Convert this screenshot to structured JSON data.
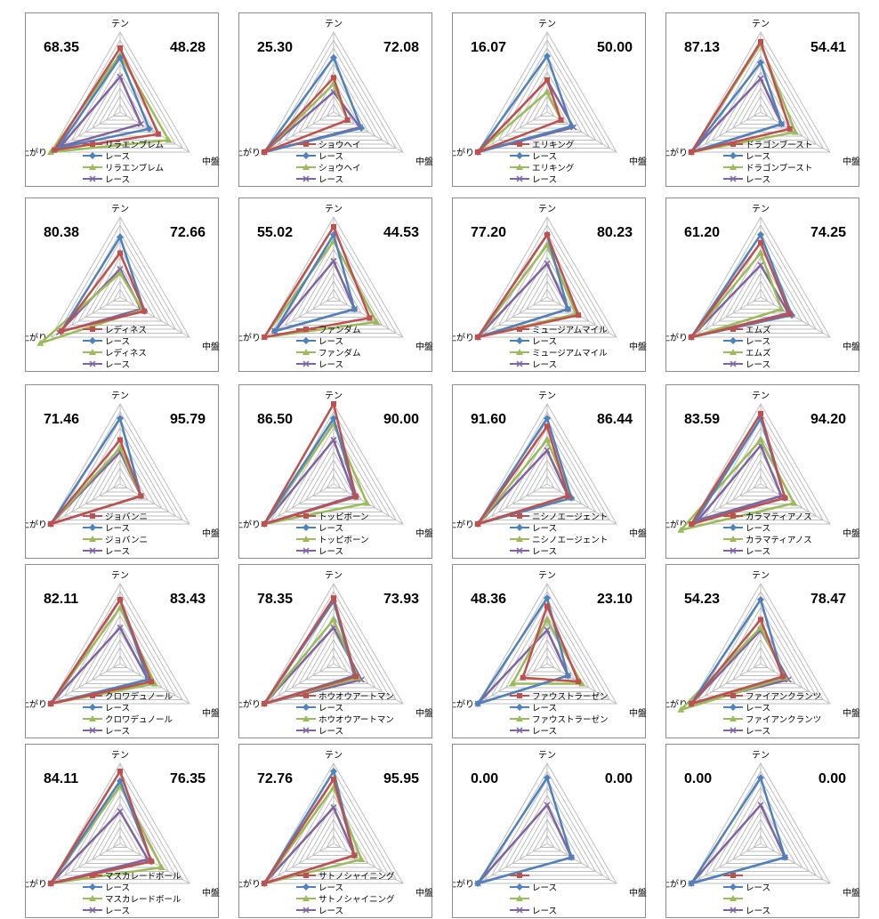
{
  "colors": {
    "red": "#c0504d",
    "blue": "#4f81bd",
    "green": "#9bbb59",
    "purple": "#8064a2",
    "grid": "#bfbfbf",
    "frame": "#8c8c8c"
  },
  "chart_data": [
    {
      "type": "radar",
      "axes": [
        "テン",
        "中盤",
        "上がり"
      ],
      "left_score": "68.35",
      "right_score": "48.28",
      "legend": [
        "リラエンブレム",
        "レース",
        "リラエンブレム",
        "レース"
      ],
      "series": [
        {
          "values": [
            80,
            55,
            95
          ]
        },
        {
          "values": [
            68,
            42,
            90
          ]
        },
        {
          "values": [
            72,
            70,
            100
          ]
        },
        {
          "values": [
            44,
            30,
            86
          ]
        }
      ]
    },
    {
      "type": "radar",
      "axes": [
        "テン",
        "中盤",
        "上がり"
      ],
      "left_score": "25.30",
      "right_score": "72.08",
      "legend": [
        "ショウヘイ",
        "レース",
        "ショウヘイ",
        "レース"
      ],
      "series": [
        {
          "values": [
            43,
            20,
            100
          ]
        },
        {
          "values": [
            68,
            40,
            100
          ]
        },
        {
          "values": [
            35,
            20,
            100
          ]
        },
        {
          "values": [
            25,
            38,
            100
          ]
        }
      ]
    },
    {
      "type": "radar",
      "axes": [
        "テン",
        "中盤",
        "上がり"
      ],
      "left_score": "16.07",
      "right_score": "50.00",
      "legend": [
        "エリキング",
        "レース",
        "エリキング",
        "レース"
      ],
      "series": [
        {
          "values": [
            40,
            20,
            100
          ]
        },
        {
          "values": [
            70,
            35,
            100
          ]
        },
        {
          "values": [
            25,
            20,
            100
          ]
        },
        {
          "values": [
            40,
            38,
            100
          ]
        }
      ]
    },
    {
      "type": "radar",
      "axes": [
        "テン",
        "中盤",
        "上がり"
      ],
      "left_score": "87.13",
      "right_score": "54.41",
      "legend": [
        "ドラゴンブースト",
        "レース",
        "ドラゴンブースト",
        "レース"
      ],
      "series": [
        {
          "values": [
            88,
            42,
            100
          ]
        },
        {
          "values": [
            62,
            30,
            100
          ]
        },
        {
          "values": [
            85,
            50,
            100
          ]
        },
        {
          "values": [
            42,
            30,
            100
          ]
        }
      ]
    },
    {
      "type": "radar",
      "axes": [
        "テン",
        "中盤",
        "上がり"
      ],
      "left_score": "80.38",
      "right_score": "72.66",
      "legend": [
        "レディネス",
        "レース",
        "レディネス",
        "レース"
      ],
      "series": [
        {
          "values": [
            55,
            35,
            85
          ]
        },
        {
          "values": [
            75,
            35,
            85
          ]
        },
        {
          "values": [
            30,
            32,
            115
          ]
        },
        {
          "values": [
            35,
            30,
            88
          ]
        }
      ]
    },
    {
      "type": "radar",
      "axes": [
        "テン",
        "中盤",
        "上がり"
      ],
      "left_score": "55.02",
      "right_score": "44.53",
      "legend": [
        "ファンダム",
        "レース",
        "ファンダム",
        "レース"
      ],
      "series": [
        {
          "values": [
            88,
            52,
            100
          ]
        },
        {
          "values": [
            78,
            30,
            85
          ]
        },
        {
          "values": [
            70,
            62,
            100
          ]
        },
        {
          "values": [
            45,
            30,
            85
          ]
        }
      ]
    },
    {
      "type": "radar",
      "axes": [
        "テン",
        "中盤",
        "上がり"
      ],
      "left_score": "77.20",
      "right_score": "80.23",
      "legend": [
        "ミュージアムマイル",
        "レース",
        "ミュージアムマイル",
        "レース"
      ],
      "series": [
        {
          "values": [
            78,
            45,
            100
          ]
        },
        {
          "values": [
            78,
            30,
            100
          ]
        },
        {
          "values": [
            65,
            42,
            100
          ]
        },
        {
          "values": [
            42,
            30,
            100
          ]
        }
      ]
    },
    {
      "type": "radar",
      "axes": [
        "テン",
        "中盤",
        "上がり"
      ],
      "left_score": "61.20",
      "right_score": "74.25",
      "legend": [
        "エムズ",
        "レース",
        "エムズ",
        "レース"
      ],
      "series": [
        {
          "values": [
            68,
            42,
            100
          ]
        },
        {
          "values": [
            78,
            45,
            100
          ]
        },
        {
          "values": [
            55,
            30,
            100
          ]
        },
        {
          "values": [
            40,
            40,
            100
          ]
        }
      ]
    },
    {
      "type": "radar",
      "axes": [
        "テン",
        "中盤",
        "上がり"
      ],
      "left_score": "71.46",
      "right_score": "95.79",
      "legend": [
        "ジョバンニ",
        "レース",
        "ジョバンニ",
        "レース"
      ],
      "series": [
        {
          "values": [
            55,
            30,
            100
          ]
        },
        {
          "values": [
            82,
            30,
            100
          ]
        },
        {
          "values": [
            45,
            30,
            100
          ]
        },
        {
          "values": [
            40,
            30,
            100
          ]
        }
      ]
    },
    {
      "type": "radar",
      "axes": [
        "テン",
        "中盤",
        "上がり"
      ],
      "left_score": "86.50",
      "right_score": "90.00",
      "legend": [
        "トッピボーン",
        "レース",
        "トッピボーン",
        "レース"
      ],
      "series": [
        {
          "values": [
            100,
            32,
            100
          ]
        },
        {
          "values": [
            82,
            32,
            100
          ]
        },
        {
          "values": [
            75,
            48,
            100
          ]
        },
        {
          "values": [
            55,
            30,
            100
          ]
        }
      ]
    },
    {
      "type": "radar",
      "axes": [
        "テン",
        "中盤",
        "上がり"
      ],
      "left_score": "91.60",
      "right_score": "86.44",
      "legend": [
        "ニシノエージェント",
        "レース",
        "ニシノエージェント",
        "レース"
      ],
      "series": [
        {
          "values": [
            72,
            30,
            100
          ]
        },
        {
          "values": [
            82,
            35,
            100
          ]
        },
        {
          "values": [
            55,
            35,
            100
          ]
        },
        {
          "values": [
            42,
            30,
            100
          ]
        }
      ]
    },
    {
      "type": "radar",
      "axes": [
        "テン",
        "中盤",
        "上がり"
      ],
      "left_score": "83.59",
      "right_score": "94.20",
      "legend": [
        "カラマティアノス",
        "レース",
        "カラマティアノス",
        "レース"
      ],
      "series": [
        {
          "values": [
            88,
            35,
            100
          ]
        },
        {
          "values": [
            82,
            35,
            95
          ]
        },
        {
          "values": [
            55,
            48,
            115
          ]
        },
        {
          "values": [
            48,
            30,
            90
          ]
        }
      ]
    },
    {
      "type": "radar",
      "axes": [
        "テン",
        "中盤",
        "上がり"
      ],
      "left_score": "82.11",
      "right_score": "83.43",
      "legend": [
        "クロワデュノール",
        "レース",
        "クロワデュノール",
        "レース"
      ],
      "series": [
        {
          "values": [
            80,
            45,
            100
          ]
        },
        {
          "values": [
            80,
            40,
            100
          ]
        },
        {
          "values": [
            70,
            50,
            100
          ]
        },
        {
          "values": [
            45,
            40,
            100
          ]
        }
      ]
    },
    {
      "type": "radar",
      "axes": [
        "テン",
        "中盤",
        "上がり"
      ],
      "left_score": "78.35",
      "right_score": "73.93",
      "legend": [
        "ホウオウアートマン",
        "レース",
        "ホウオウアートマン",
        "レース"
      ],
      "series": [
        {
          "values": [
            82,
            32,
            100
          ]
        },
        {
          "values": [
            78,
            30,
            100
          ]
        },
        {
          "values": [
            55,
            35,
            100
          ]
        },
        {
          "values": [
            45,
            40,
            100
          ]
        }
      ]
    },
    {
      "type": "radar",
      "axes": [
        "テン",
        "中盤",
        "上がり"
      ],
      "left_score": "48.36",
      "right_score": "23.10",
      "legend": [
        "ファウストラーゼン",
        "レース",
        "ファウストラーゼン",
        "レース"
      ],
      "series": [
        {
          "values": [
            72,
            45,
            35
          ]
        },
        {
          "values": [
            82,
            30,
            100
          ]
        },
        {
          "values": [
            55,
            50,
            50
          ]
        },
        {
          "values": [
            42,
            30,
            100
          ]
        }
      ]
    },
    {
      "type": "radar",
      "axes": [
        "テン",
        "中盤",
        "上がり"
      ],
      "left_score": "54.23",
      "right_score": "78.47",
      "legend": [
        "ファイアンクランツ",
        "レース",
        "ファイアンクランツ",
        "レース"
      ],
      "series": [
        {
          "values": [
            55,
            32,
            100
          ]
        },
        {
          "values": [
            80,
            32,
            100
          ]
        },
        {
          "values": [
            45,
            35,
            115
          ]
        },
        {
          "values": [
            42,
            40,
            100
          ]
        }
      ]
    },
    {
      "type": "radar",
      "axes": [
        "テン",
        "中盤",
        "上がり"
      ],
      "left_score": "84.11",
      "right_score": "76.35",
      "legend": [
        "マスカレードボール",
        "レース",
        "マスカレードボール",
        "レース"
      ],
      "series": [
        {
          "values": [
            90,
            45,
            100
          ]
        },
        {
          "values": [
            78,
            45,
            100
          ]
        },
        {
          "values": [
            72,
            60,
            100
          ]
        },
        {
          "values": [
            40,
            40,
            100
          ]
        }
      ]
    },
    {
      "type": "radar",
      "axes": [
        "テン",
        "中盤",
        "上がり"
      ],
      "left_score": "72.76",
      "right_score": "95.95",
      "legend": [
        "サトノシャイニング",
        "レース",
        "サトノシャイニング",
        "レース"
      ],
      "series": [
        {
          "values": [
            80,
            30,
            100
          ]
        },
        {
          "values": [
            90,
            30,
            100
          ]
        },
        {
          "values": [
            70,
            40,
            100
          ]
        },
        {
          "values": [
            45,
            30,
            100
          ]
        }
      ]
    },
    {
      "type": "radar",
      "axes": [
        "テン",
        "中盤",
        "上がり"
      ],
      "left_score": "0.00",
      "right_score": "0.00",
      "legend": [
        "",
        "レース",
        "",
        "レース"
      ],
      "series": [
        {
          "values": []
        },
        {
          "values": [
            82,
            35,
            100
          ]
        },
        {
          "values": []
        },
        {
          "values": [
            48,
            35,
            100
          ]
        }
      ]
    },
    {
      "type": "radar",
      "axes": [
        "テン",
        "中盤",
        "上がり"
      ],
      "left_score": "0.00",
      "right_score": "0.00",
      "legend": [
        "",
        "レース",
        "",
        "レース"
      ],
      "series": [
        {
          "values": []
        },
        {
          "values": [
            82,
            35,
            100
          ]
        },
        {
          "values": []
        },
        {
          "values": [
            48,
            35,
            100
          ]
        }
      ]
    }
  ]
}
